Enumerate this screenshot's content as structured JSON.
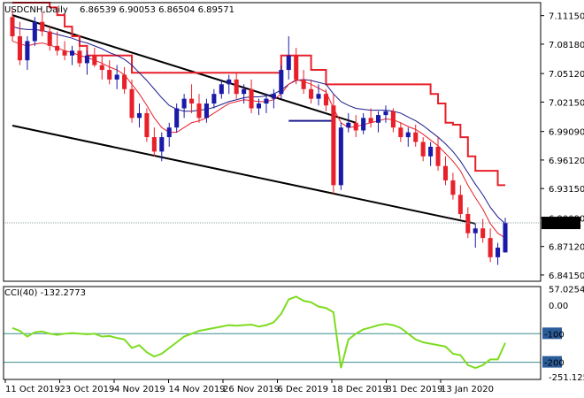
{
  "window": {
    "symbol_title": "USDCNH,Daily",
    "ohlc_text": "6.86539 6.90053 6.86504 6.89571"
  },
  "indicator": {
    "title": "CCI(40) -132.2773"
  },
  "colors": {
    "bull": "#1a1aa8",
    "bear": "#e8202a",
    "ma_fast": "#e8202a",
    "ma_slow": "#1c1c8c",
    "cci": "#7ddc1f",
    "trend": "#000000",
    "price_box": "#000000",
    "level_line": "#3c8c8c"
  },
  "chart_data": [
    {
      "type": "candlestick",
      "title": "USDCNH,Daily",
      "ylim": [
        6.835,
        7.125
      ],
      "y_ticks": [
        "7.11150",
        "7.08180",
        "7.05120",
        "7.02150",
        "6.99090",
        "6.96120",
        "6.93150",
        "6.90090",
        "6.87120",
        "6.84150"
      ],
      "current_price": "6.89571",
      "x_ticks": [
        "11 Oct 2019",
        "23 Oct 2019",
        "4 Nov 2019",
        "14 Nov 2019",
        "26 Nov 2019",
        "6 Dec 2019",
        "18 Dec 2019",
        "31 Dec 2019",
        "13 Jan 2020"
      ],
      "candles": [
        [
          7.11,
          7.118,
          7.085,
          7.09
        ],
        [
          7.09,
          7.105,
          7.06,
          7.065
        ],
        [
          7.065,
          7.09,
          7.055,
          7.085
        ],
        [
          7.085,
          7.11,
          7.08,
          7.105
        ],
        [
          7.105,
          7.115,
          7.09,
          7.095
        ],
        [
          7.095,
          7.1,
          7.075,
          7.08
        ],
        [
          7.08,
          7.095,
          7.07,
          7.075
        ],
        [
          7.075,
          7.085,
          7.065,
          7.07
        ],
        [
          7.07,
          7.08,
          7.06,
          7.075
        ],
        [
          7.075,
          7.082,
          7.058,
          7.062
        ],
        [
          7.062,
          7.075,
          7.05,
          7.07
        ],
        [
          7.07,
          7.078,
          7.058,
          7.06
        ],
        [
          7.06,
          7.07,
          7.045,
          7.055
        ],
        [
          7.055,
          7.065,
          7.04,
          7.045
        ],
        [
          7.045,
          7.06,
          7.035,
          7.05
        ],
        [
          7.05,
          7.058,
          7.03,
          7.035
        ],
        [
          7.035,
          7.045,
          7.0,
          7.005
        ],
        [
          7.005,
          7.02,
          6.995,
          7.01
        ],
        [
          7.01,
          7.015,
          6.98,
          6.985
        ],
        [
          6.985,
          6.995,
          6.965,
          6.97
        ],
        [
          6.97,
          6.99,
          6.96,
          6.985
        ],
        [
          6.985,
          7.0,
          6.975,
          6.995
        ],
        [
          6.995,
          7.02,
          6.99,
          7.015
        ],
        [
          7.015,
          7.03,
          7.005,
          7.025
        ],
        [
          7.025,
          7.04,
          7.01,
          7.02
        ],
        [
          7.02,
          7.03,
          7.0,
          7.005
        ],
        [
          7.005,
          7.025,
          7.0,
          7.02
        ],
        [
          7.02,
          7.035,
          7.015,
          7.03
        ],
        [
          7.03,
          7.045,
          7.025,
          7.04
        ],
        [
          7.04,
          7.05,
          7.03,
          7.045
        ],
        [
          7.045,
          7.052,
          7.025,
          7.03
        ],
        [
          7.03,
          7.04,
          7.02,
          7.035
        ],
        [
          7.035,
          7.045,
          7.01,
          7.015
        ],
        [
          7.015,
          7.025,
          7.008,
          7.02
        ],
        [
          7.02,
          7.03,
          7.01,
          7.025
        ],
        [
          7.025,
          7.035,
          7.015,
          7.03
        ],
        [
          7.03,
          7.06,
          7.025,
          7.055
        ],
        [
          7.055,
          7.09,
          7.045,
          7.07
        ],
        [
          7.07,
          7.078,
          7.04,
          7.045
        ],
        [
          7.045,
          7.055,
          7.03,
          7.035
        ],
        [
          7.035,
          7.045,
          7.02,
          7.025
        ],
        [
          7.025,
          7.04,
          7.018,
          7.03
        ],
        [
          7.03,
          7.035,
          7.012,
          7.018
        ],
        [
          7.018,
          7.03,
          6.925,
          6.935
        ],
        [
          6.935,
          7.0,
          6.93,
          6.995
        ],
        [
          6.995,
          7.01,
          6.99,
          7.0
        ],
        [
          7.0,
          7.008,
          6.985,
          6.992
        ],
        [
          6.992,
          7.01,
          6.988,
          7.005
        ],
        [
          7.005,
          7.015,
          6.995,
          7.0
        ],
        [
          7.0,
          7.012,
          6.99,
          7.008
        ],
        [
          7.008,
          7.018,
          7.0,
          7.012
        ],
        [
          7.012,
          7.015,
          6.99,
          6.995
        ],
        [
          6.995,
          7.0,
          6.98,
          6.985
        ],
        [
          6.985,
          6.995,
          6.975,
          6.99
        ],
        [
          6.99,
          6.998,
          6.975,
          6.98
        ],
        [
          6.98,
          6.985,
          6.96,
          6.965
        ],
        [
          6.965,
          6.98,
          6.955,
          6.975
        ],
        [
          6.975,
          6.985,
          6.95,
          6.955
        ],
        [
          6.955,
          6.965,
          6.935,
          6.94
        ],
        [
          6.94,
          6.948,
          6.92,
          6.925
        ],
        [
          6.925,
          6.935,
          6.9,
          6.905
        ],
        [
          6.905,
          6.912,
          6.88,
          6.885
        ],
        [
          6.885,
          6.895,
          6.87,
          6.89
        ],
        [
          6.89,
          6.9,
          6.875,
          6.88
        ],
        [
          6.88,
          6.89,
          6.855,
          6.86
        ],
        [
          6.86,
          6.875,
          6.852,
          6.87
        ],
        [
          6.865,
          6.901,
          6.865,
          6.896
        ]
      ],
      "ma_fast_values": [
        7.085,
        7.082,
        7.08,
        7.082,
        7.083,
        7.081,
        7.078,
        7.075,
        7.073,
        7.07,
        7.068,
        7.065,
        7.062,
        7.058,
        7.055,
        7.05,
        7.04,
        7.03,
        7.018,
        7.005,
        6.995,
        6.99,
        6.99,
        6.995,
        7.0,
        7.002,
        7.005,
        7.01,
        7.015,
        7.02,
        7.022,
        7.024,
        7.023,
        7.022,
        7.022,
        7.024,
        7.03,
        7.04,
        7.045,
        7.043,
        7.04,
        7.036,
        7.032,
        7.015,
        7.0,
        6.995,
        6.996,
        6.998,
        7.0,
        7.002,
        7.004,
        7.003,
        7.0,
        6.996,
        6.993,
        6.988,
        6.982,
        6.976,
        6.968,
        6.96,
        6.95,
        6.935,
        6.922,
        6.91,
        6.895,
        6.885,
        6.88
      ],
      "ma_slow_values": [
        7.1,
        7.098,
        7.097,
        7.097,
        7.096,
        7.094,
        7.092,
        7.09,
        7.088,
        7.085,
        7.083,
        7.08,
        7.077,
        7.073,
        7.07,
        7.066,
        7.06,
        7.052,
        7.044,
        7.035,
        7.026,
        7.018,
        7.014,
        7.012,
        7.012,
        7.013,
        7.014,
        7.016,
        7.019,
        7.022,
        7.024,
        7.026,
        7.027,
        7.027,
        7.028,
        7.03,
        7.034,
        7.04,
        7.044,
        7.045,
        7.044,
        7.042,
        7.04,
        7.03,
        7.022,
        7.018,
        7.015,
        7.014,
        7.013,
        7.013,
        7.013,
        7.012,
        7.01,
        7.006,
        7.002,
        6.997,
        6.991,
        6.985,
        6.978,
        6.97,
        6.96,
        6.948,
        6.936,
        6.925,
        6.912,
        6.902,
        6.895
      ],
      "trailing_stop": [
        7.125,
        7.125,
        7.125,
        7.125,
        7.125,
        7.12,
        7.112,
        7.1,
        7.09,
        7.08,
        7.07,
        7.07,
        7.07,
        7.07,
        7.07,
        7.07,
        7.052,
        7.052,
        7.052,
        7.052,
        7.052,
        7.052,
        7.052,
        7.052,
        7.052,
        7.052,
        7.052,
        7.052,
        7.052,
        7.052,
        7.052,
        7.052,
        7.052,
        7.052,
        7.052,
        7.052,
        7.07,
        7.07,
        7.07,
        7.07,
        7.055,
        7.055,
        7.04,
        7.04,
        7.04,
        7.04,
        7.04,
        7.04,
        7.04,
        7.04,
        7.04,
        7.04,
        7.04,
        7.04,
        7.04,
        7.04,
        7.03,
        7.02,
        7.0,
        6.998,
        6.985,
        6.965,
        6.95,
        6.95,
        6.95,
        6.935,
        6.935
      ],
      "blue_level": 7.002,
      "trend_upper": [
        [
          0,
          7.112
        ],
        [
          46,
          7.0
        ]
      ],
      "trend_lower": [
        [
          0,
          6.997
        ],
        [
          62,
          6.895
        ]
      ]
    },
    {
      "type": "line",
      "title": "CCI(40) -132.2773",
      "ylim": [
        -260,
        65
      ],
      "y_ticks": [
        "57.0254",
        "0.00",
        "-100",
        "-200",
        "-251.1252"
      ],
      "levels": [
        -100,
        -200
      ],
      "values": [
        -80,
        -90,
        -110,
        -95,
        -92,
        -100,
        -104,
        -100,
        -98,
        -100,
        -102,
        -100,
        -110,
        -108,
        -115,
        -120,
        -150,
        -140,
        -165,
        -180,
        -170,
        -150,
        -130,
        -110,
        -100,
        -90,
        -85,
        -80,
        -75,
        -70,
        -72,
        -70,
        -68,
        -75,
        -70,
        -60,
        -30,
        20,
        30,
        15,
        10,
        -5,
        -10,
        -25,
        -220,
        -120,
        -100,
        -85,
        -78,
        -70,
        -66,
        -70,
        -80,
        -100,
        -120,
        -130,
        -135,
        -140,
        -145,
        -170,
        -175,
        -210,
        -220,
        -210,
        -190,
        -190,
        -132
      ]
    }
  ]
}
